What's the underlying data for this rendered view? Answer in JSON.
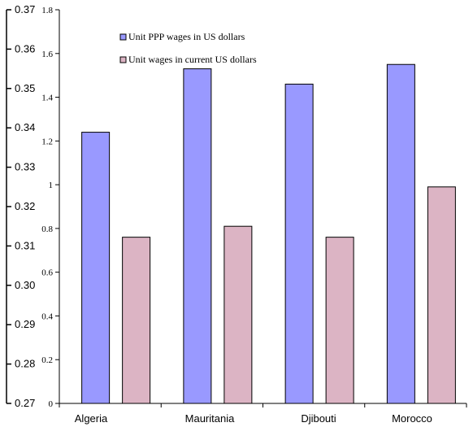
{
  "chart_data": {
    "type": "bar",
    "categories": [
      "Algeria",
      "Mauritania",
      "Djibouti",
      "Morocco"
    ],
    "series": [
      {
        "name": "Unit PPP wages  in US dollars",
        "values": [
          1.24,
          1.53,
          1.46,
          1.55
        ],
        "color": "#9999ff"
      },
      {
        "name": "Unit wages in current US dollars",
        "values": [
          0.76,
          0.81,
          0.76,
          0.99
        ],
        "color": "#dcb4c4"
      }
    ],
    "y_axis_left": {
      "ticks": [
        "0.27",
        "0.28",
        "0.29",
        "0.30",
        "0.31",
        "0.32",
        "0.33",
        "0.34",
        "0.35",
        "0.36",
        "0.37"
      ],
      "ylim": [
        0.27,
        0.37
      ]
    },
    "y_axis_inner": {
      "ticks": [
        "0",
        "0.2",
        "0.4",
        "0.6",
        "0.8",
        "1",
        "1.2",
        "1.4",
        "1.6",
        "1.8"
      ],
      "ylim": [
        0,
        1.8
      ]
    },
    "legend_position": "top-center",
    "grid": false
  }
}
